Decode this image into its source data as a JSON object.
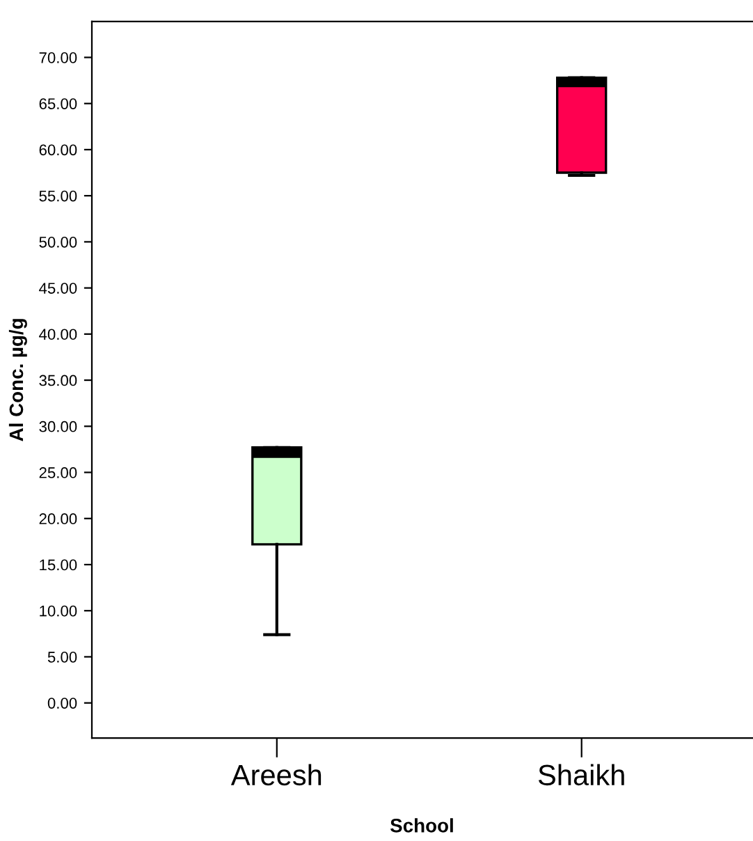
{
  "chart_data": {
    "type": "box",
    "xlabel": "School",
    "ylabel": "Al Conc. µg/g",
    "categories": [
      "Areesh",
      "Shaikh"
    ],
    "boxes": [
      {
        "low": 7.4,
        "q1": 17.2,
        "median": 27.1,
        "q3": 27.7,
        "high": 27.7
      },
      {
        "low": 57.2,
        "q1": 57.5,
        "median": 67.3,
        "q3": 67.8,
        "high": 67.8
      }
    ],
    "colors": [
      "#ccffcc",
      "#ff0050"
    ],
    "ylim": [
      -3.8,
      73.9
    ],
    "yticks": [
      {
        "value": 0,
        "label": "0.00"
      },
      {
        "value": 5,
        "label": "5.00"
      },
      {
        "value": 10,
        "label": "10.00"
      },
      {
        "value": 15,
        "label": "15.00"
      },
      {
        "value": 20,
        "label": "20.00"
      },
      {
        "value": 25,
        "label": "25.00"
      },
      {
        "value": 30,
        "label": "30.00"
      },
      {
        "value": 35,
        "label": "35.00"
      },
      {
        "value": 40,
        "label": "40.00"
      },
      {
        "value": 45,
        "label": "45.00"
      },
      {
        "value": 50,
        "label": "50.00"
      },
      {
        "value": 55,
        "label": "55.00"
      },
      {
        "value": 60,
        "label": "60.00"
      },
      {
        "value": 65,
        "label": "65.00"
      },
      {
        "value": 70,
        "label": "70.00"
      }
    ],
    "grid": false
  }
}
